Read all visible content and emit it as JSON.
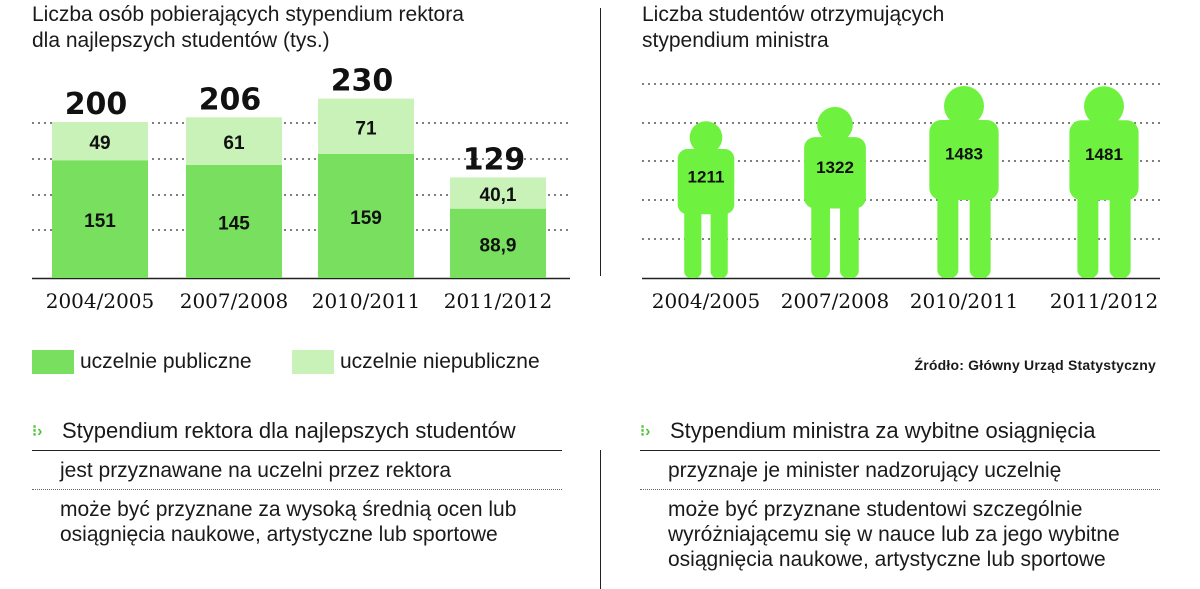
{
  "left_title": [
    "Liczba osób pobierających stypendium rektora",
    "dla najlepszych studentów (tys.)"
  ],
  "right_title": [
    "Liczba studentów otrzymujących",
    "stypendium ministra"
  ],
  "colors": {
    "public": "#78e05e",
    "nonpublic": "#c9f2b9",
    "figure": "#6ff23f",
    "accent": "#55c43a"
  },
  "legend": {
    "public": "uczelnie publiczne",
    "nonpublic": "uczelnie niepubliczne"
  },
  "source": "Źródło: Główny Urząd Statystyczny",
  "chart_data": [
    {
      "type": "bar",
      "title": "Liczba osób pobierających stypendium rektora dla najlepszych studentów (tys.)",
      "stacked": true,
      "categories": [
        "2004/2005",
        "2007/2008",
        "2010/2011",
        "2011/2012"
      ],
      "series": [
        {
          "name": "uczelnie publiczne",
          "values": [
            151,
            145,
            159,
            88.9
          ],
          "labels": [
            "151",
            "145",
            "159",
            "88,9"
          ]
        },
        {
          "name": "uczelnie niepubliczne",
          "values": [
            49,
            61,
            71,
            40.1
          ],
          "labels": [
            "49",
            "61",
            "71",
            "40,1"
          ]
        }
      ],
      "totals": [
        200,
        206,
        230,
        129
      ],
      "total_labels": [
        "200",
        "206",
        "230",
        "129"
      ],
      "ylim": [
        0,
        240
      ],
      "grid": true,
      "legend": "bottom-left"
    },
    {
      "type": "bar",
      "title": "Liczba studentów otrzymujących stypendium ministra",
      "categories": [
        "2004/2005",
        "2007/2008",
        "2010/2011",
        "2011/2012"
      ],
      "values": [
        1211,
        1322,
        1483,
        1481
      ],
      "labels": [
        "1211",
        "1322",
        "1483",
        "1481"
      ],
      "ylim": [
        0,
        1600
      ],
      "grid": true
    }
  ],
  "info_left": {
    "heading": "Stypendium rektora dla najlepszych studentów",
    "lines": [
      "jest przyznawane na uczelni przez rektora",
      "może być przyznane za wysoką średnią ocen lub osiągnięcia naukowe, artystyczne lub sportowe"
    ]
  },
  "info_right": {
    "heading": "Stypendium ministra za wybitne osiągnięcia",
    "lines": [
      "przyznaje je minister nadzorujący uczelnię",
      "może być przyznane studentowi szczególnie wyróżniającemu się w nauce lub za jego wybitne osiągnięcia naukowe, artystyczne lub sportowe"
    ]
  }
}
